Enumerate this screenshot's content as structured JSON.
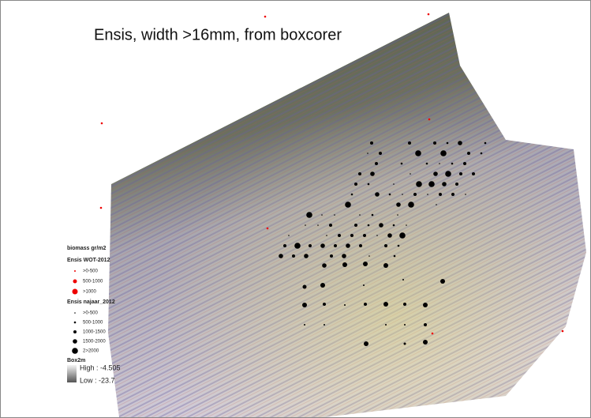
{
  "title": "Ensis, width >16mm, from boxcorer",
  "legend": {
    "heading": "biomass gr/m2",
    "groups": [
      {
        "title": "Ensis WOT-2012",
        "items": [
          ">0-500",
          "500-1000",
          ">1000"
        ]
      },
      {
        "title": "Ensis najaar_2012",
        "items": [
          ">0-500",
          "500-1000",
          "1000-1500",
          "1500-2000",
          "2>2000"
        ]
      }
    ],
    "raster": {
      "title": "Box2m",
      "high": "High : -4.505",
      "low": "Low : -23.7"
    }
  }
}
